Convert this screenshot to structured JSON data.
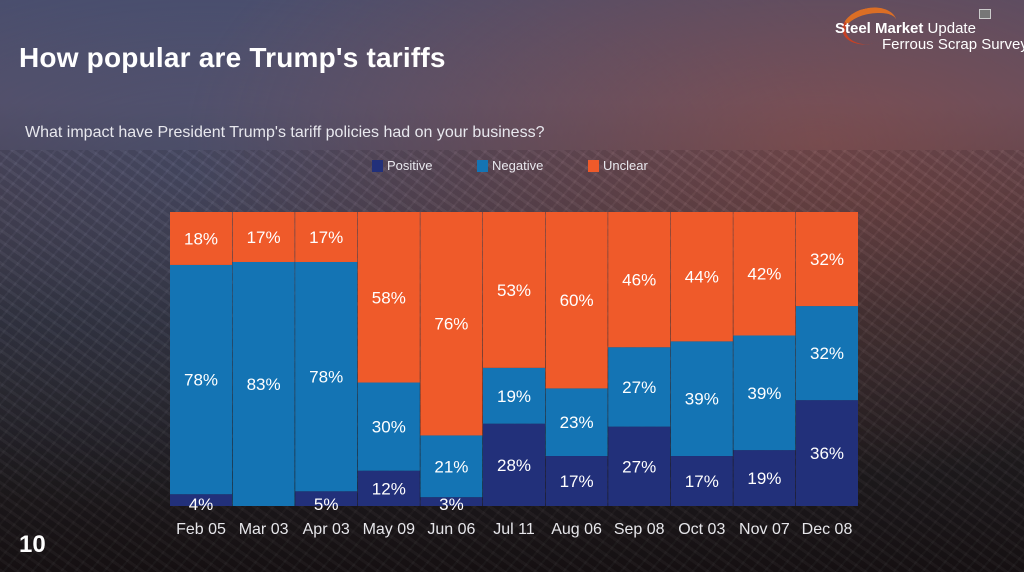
{
  "page": {
    "title": "How popular are Trump's tariffs",
    "page_number": "10",
    "logo": {
      "line1_bold": "Steel Market",
      "line1_light": "Update",
      "line2": "Ferrous Scrap Survey"
    }
  },
  "chart_data": {
    "type": "bar",
    "stacked": true,
    "title": "What impact have President Trump's tariff policies had on your business?",
    "xlabel": "",
    "ylabel": "",
    "ylim": [
      0,
      100
    ],
    "grid": false,
    "legend_position": "top",
    "categories": [
      "Feb 05",
      "Mar 03",
      "Apr 03",
      "May 09",
      "Jun 06",
      "Jul 11",
      "Aug 06",
      "Sep 08",
      "Oct 03",
      "Nov 07",
      "Dec 08"
    ],
    "series": [
      {
        "name": "Positive",
        "color": "#22307a",
        "values": [
          4,
          0,
          5,
          12,
          3,
          28,
          17,
          27,
          17,
          19,
          36
        ]
      },
      {
        "name": "Negative",
        "color": "#1474b4",
        "values": [
          78,
          83,
          78,
          30,
          21,
          19,
          23,
          27,
          39,
          39,
          32
        ]
      },
      {
        "name": "Unclear",
        "color": "#ef5a2a",
        "values": [
          18,
          17,
          17,
          58,
          76,
          53,
          60,
          46,
          44,
          42,
          32
        ]
      }
    ]
  }
}
